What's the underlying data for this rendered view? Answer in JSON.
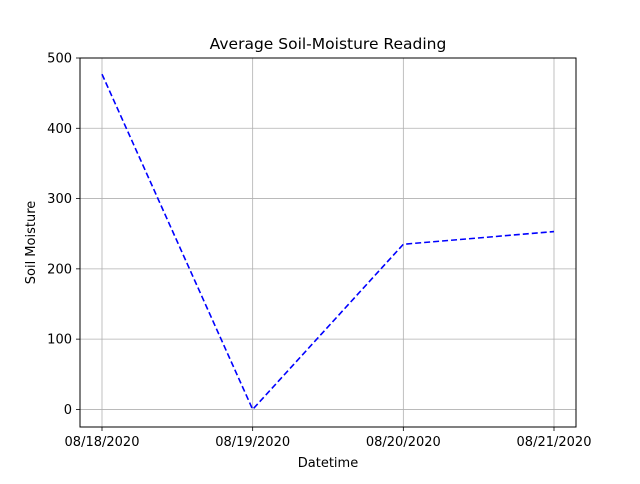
{
  "chart_data": {
    "type": "line",
    "title": "Average Soil-Moisture Reading",
    "xlabel": "Datetime",
    "ylabel": "Soil Moisture",
    "categories": [
      "08/18/2020",
      "08/19/2020",
      "08/20/2020",
      "08/21/2020"
    ],
    "series": [
      {
        "name": "Soil Moisture",
        "values": [
          477,
          0,
          235,
          253
        ],
        "color": "#0000ff",
        "line_style": "dashed"
      }
    ],
    "ylim": [
      -25,
      500
    ],
    "yticks": [
      0,
      100,
      200,
      300,
      400,
      500
    ],
    "grid": true,
    "colors": {
      "grid": "#b0b0b0",
      "axes": "#000000",
      "line": "#0000ff"
    }
  }
}
